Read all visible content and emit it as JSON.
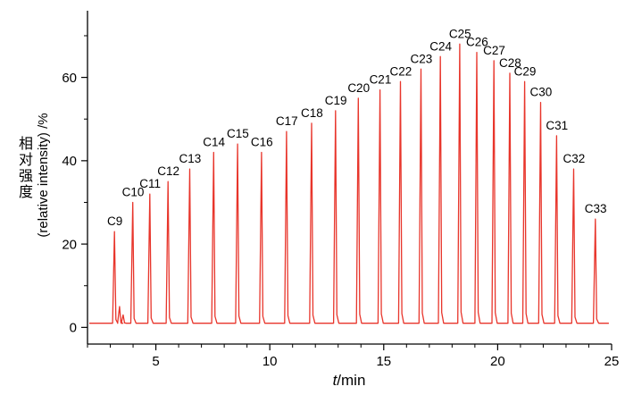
{
  "labels": {
    "y_axis_cn": "相对强度",
    "y_axis_en": "(relative intensity) /%",
    "x_axis_italic": "t",
    "x_axis_rest": "/min"
  },
  "chart_data": {
    "type": "line",
    "title": "",
    "xlabel": "t/min",
    "ylabel": "相对强度 (relative intensity) /%",
    "xlim": [
      2,
      25
    ],
    "ylim": [
      -4,
      76
    ],
    "x_major_ticks": [
      5,
      10,
      15,
      20,
      25
    ],
    "x_minor_tick_step": 1,
    "y_major_ticks": [
      0,
      20,
      40,
      60
    ],
    "y_minor_tick_step": 10,
    "grid": false,
    "legend": "none",
    "baseline_intensity": 1,
    "trace_color": "#e8352b",
    "axis_color": "#000000",
    "peaks": [
      {
        "label": "C9",
        "t": 3.2,
        "intensity": 23
      },
      {
        "label": "C10",
        "t": 4.0,
        "intensity": 30
      },
      {
        "label": "C11",
        "t": 4.75,
        "intensity": 32
      },
      {
        "label": "C12",
        "t": 5.55,
        "intensity": 35
      },
      {
        "label": "C13",
        "t": 6.5,
        "intensity": 38
      },
      {
        "label": "C14",
        "t": 7.55,
        "intensity": 42
      },
      {
        "label": "C15",
        "t": 8.6,
        "intensity": 44
      },
      {
        "label": "C16",
        "t": 9.65,
        "intensity": 42
      },
      {
        "label": "C17",
        "t": 10.75,
        "intensity": 47
      },
      {
        "label": "C18",
        "t": 11.85,
        "intensity": 49
      },
      {
        "label": "C19",
        "t": 12.9,
        "intensity": 52
      },
      {
        "label": "C20",
        "t": 13.9,
        "intensity": 55
      },
      {
        "label": "C21",
        "t": 14.85,
        "intensity": 57
      },
      {
        "label": "C22",
        "t": 15.75,
        "intensity": 59
      },
      {
        "label": "C23",
        "t": 16.65,
        "intensity": 62
      },
      {
        "label": "C24",
        "t": 17.5,
        "intensity": 65
      },
      {
        "label": "C25",
        "t": 18.35,
        "intensity": 68
      },
      {
        "label": "C26",
        "t": 19.1,
        "intensity": 66
      },
      {
        "label": "C27",
        "t": 19.85,
        "intensity": 64
      },
      {
        "label": "C28",
        "t": 20.55,
        "intensity": 61
      },
      {
        "label": "C29",
        "t": 21.2,
        "intensity": 59
      },
      {
        "label": "C30",
        "t": 21.9,
        "intensity": 54
      },
      {
        "label": "C31",
        "t": 22.6,
        "intensity": 46
      },
      {
        "label": "C32",
        "t": 23.35,
        "intensity": 38
      },
      {
        "label": "C33",
        "t": 24.3,
        "intensity": 26
      }
    ],
    "unlabeled_peaks": [
      {
        "t": 3.42,
        "intensity": 5
      },
      {
        "t": 3.58,
        "intensity": 3
      }
    ]
  }
}
